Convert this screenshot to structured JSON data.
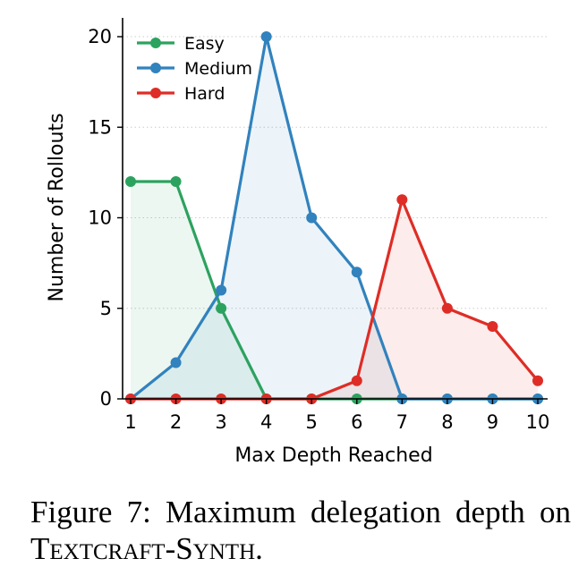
{
  "chart_data": {
    "type": "line",
    "xlabel": "Max Depth Reached",
    "ylabel": "Number of Rollouts",
    "x": [
      1,
      2,
      3,
      4,
      5,
      6,
      7,
      8,
      9,
      10
    ],
    "xlim": [
      1,
      10
    ],
    "ylim": [
      0,
      21
    ],
    "yticks": [
      0,
      5,
      10,
      15,
      20
    ],
    "grid": "horizontal dotted",
    "legend_position": "top-left",
    "series": [
      {
        "name": "Easy",
        "color": "#2ca25f",
        "values": [
          12,
          12,
          5,
          0,
          0,
          0,
          0,
          0,
          0,
          0
        ]
      },
      {
        "name": "Medium",
        "color": "#3182bd",
        "values": [
          0,
          2,
          6,
          20,
          10,
          7,
          0,
          0,
          0,
          0
        ]
      },
      {
        "name": "Hard",
        "color": "#de2d26",
        "values": [
          0,
          0,
          0,
          0,
          0,
          1,
          11,
          5,
          4,
          1
        ]
      }
    ]
  },
  "caption": {
    "prefix": "Figure 7:  Maximum delegation depth on ",
    "dataset_a": "Textcraft",
    "dash": "-",
    "dataset_b": "Synth",
    "suffix": "."
  }
}
